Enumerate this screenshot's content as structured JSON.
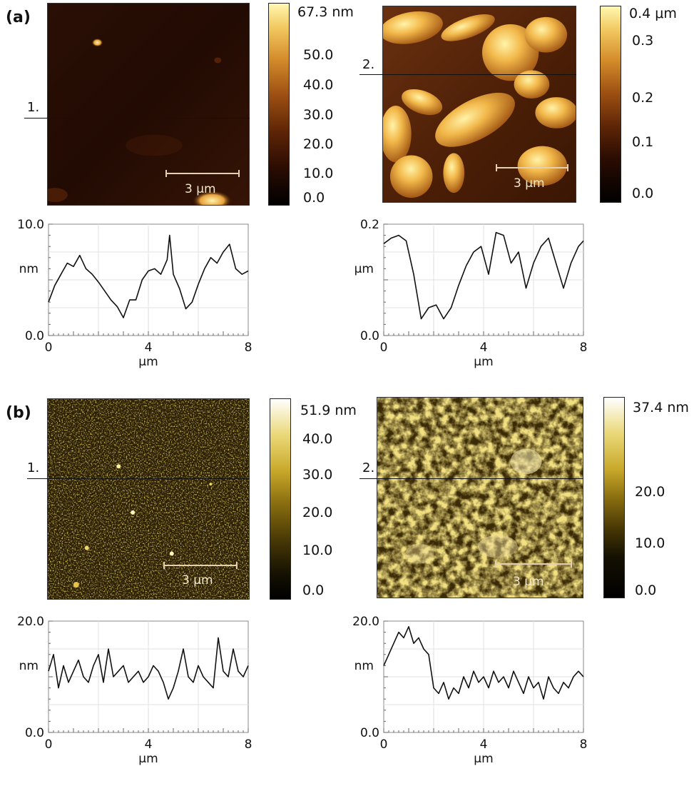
{
  "panels": [
    {
      "label": "(a)",
      "images": [
        {
          "line_label": "1.",
          "scale_label": "3 μm",
          "palette": "copper",
          "colorbar": {
            "max_label": "67.3 nm",
            "ticks": [
              "50.0",
              "40.0",
              "30.0",
              "20.0",
              "10.0",
              "0.0"
            ]
          }
        },
        {
          "line_label": "2.",
          "scale_label": "3 μm",
          "palette": "copper",
          "colorbar": {
            "max_label": "0.4 μm",
            "ticks": [
              "0.3",
              "0.2",
              "0.1",
              "0.0"
            ]
          }
        }
      ]
    },
    {
      "label": "(b)",
      "images": [
        {
          "line_label": "1.",
          "scale_label": "3 μm",
          "palette": "gold",
          "colorbar": {
            "max_label": "51.9 nm",
            "ticks": [
              "40.0",
              "30.0",
              "20.0",
              "10.0",
              "0.0"
            ]
          }
        },
        {
          "line_label": "2.",
          "scale_label": "3 μm",
          "palette": "gold",
          "colorbar": {
            "max_label": "37.4 nm",
            "ticks": [
              "20.0",
              "10.0",
              "0.0"
            ]
          }
        }
      ]
    }
  ],
  "chart_data": [
    {
      "type": "line",
      "panel": "(a)",
      "profile": "1.",
      "xlabel": "μm",
      "ylabel": "nm",
      "xlim": [
        0,
        8
      ],
      "ylim": [
        0,
        10
      ],
      "xticks": [
        "0",
        "4",
        "8"
      ],
      "yticks": [
        "0.0",
        "10.0"
      ],
      "x": [
        0,
        0.25,
        0.5,
        0.75,
        1.0,
        1.25,
        1.5,
        1.75,
        2.0,
        2.25,
        2.5,
        2.75,
        3.0,
        3.25,
        3.5,
        3.75,
        4.0,
        4.25,
        4.5,
        4.75,
        4.85,
        5.0,
        5.25,
        5.5,
        5.75,
        6.0,
        6.25,
        6.5,
        6.75,
        7.0,
        7.25,
        7.5,
        7.75,
        8.0
      ],
      "y": [
        3.0,
        4.5,
        5.5,
        6.5,
        6.2,
        7.2,
        6.0,
        5.5,
        4.8,
        4.0,
        3.2,
        2.6,
        1.6,
        3.2,
        3.2,
        5.0,
        5.8,
        6.0,
        5.5,
        6.8,
        9.0,
        5.5,
        4.2,
        2.4,
        3.0,
        4.6,
        6.0,
        7.0,
        6.5,
        7.5,
        8.2,
        6.0,
        5.5,
        5.8
      ]
    },
    {
      "type": "line",
      "panel": "(a)",
      "profile": "2.",
      "xlabel": "μm",
      "ylabel": "μm",
      "xlim": [
        0,
        8
      ],
      "ylim": [
        0,
        0.2
      ],
      "xticks": [
        "0",
        "4",
        "8"
      ],
      "yticks": [
        "0.0",
        "0.2"
      ],
      "x": [
        0,
        0.3,
        0.6,
        0.9,
        1.2,
        1.5,
        1.8,
        2.1,
        2.4,
        2.7,
        3.0,
        3.3,
        3.6,
        3.9,
        4.2,
        4.5,
        4.8,
        5.1,
        5.4,
        5.7,
        6.0,
        6.3,
        6.6,
        6.9,
        7.2,
        7.5,
        7.8,
        8.0
      ],
      "y": [
        0.165,
        0.175,
        0.18,
        0.17,
        0.11,
        0.03,
        0.05,
        0.055,
        0.03,
        0.05,
        0.09,
        0.125,
        0.15,
        0.16,
        0.11,
        0.185,
        0.18,
        0.13,
        0.15,
        0.085,
        0.13,
        0.16,
        0.175,
        0.13,
        0.085,
        0.13,
        0.16,
        0.17
      ]
    },
    {
      "type": "line",
      "panel": "(b)",
      "profile": "1.",
      "xlabel": "μm",
      "ylabel": "nm",
      "xlim": [
        0,
        8
      ],
      "ylim": [
        0,
        20
      ],
      "xticks": [
        "0",
        "4",
        "8"
      ],
      "yticks": [
        "0.0",
        "20.0"
      ],
      "x": [
        0,
        0.2,
        0.4,
        0.6,
        0.8,
        1.0,
        1.2,
        1.4,
        1.6,
        1.8,
        2.0,
        2.2,
        2.4,
        2.6,
        2.8,
        3.0,
        3.2,
        3.4,
        3.6,
        3.8,
        4.0,
        4.2,
        4.4,
        4.6,
        4.8,
        5.0,
        5.2,
        5.4,
        5.6,
        5.8,
        6.0,
        6.2,
        6.4,
        6.6,
        6.8,
        7.0,
        7.2,
        7.4,
        7.6,
        7.8,
        8.0
      ],
      "y": [
        11,
        14,
        8,
        12,
        9,
        11,
        13,
        10,
        9,
        12,
        14,
        9,
        15,
        10,
        11,
        12,
        9,
        10,
        11,
        9,
        10,
        12,
        11,
        9,
        6,
        8,
        11,
        15,
        10,
        9,
        12,
        10,
        9,
        8,
        17,
        11,
        10,
        15,
        11,
        10,
        12
      ]
    },
    {
      "type": "line",
      "panel": "(b)",
      "profile": "2.",
      "xlabel": "μm",
      "ylabel": "nm",
      "xlim": [
        0,
        8
      ],
      "ylim": [
        0,
        20
      ],
      "xticks": [
        "0",
        "4",
        "8"
      ],
      "yticks": [
        "0.0",
        "20.0"
      ],
      "x": [
        0,
        0.2,
        0.4,
        0.6,
        0.8,
        1.0,
        1.2,
        1.4,
        1.6,
        1.8,
        2.0,
        2.2,
        2.4,
        2.6,
        2.8,
        3.0,
        3.2,
        3.4,
        3.6,
        3.8,
        4.0,
        4.2,
        4.4,
        4.6,
        4.8,
        5.0,
        5.2,
        5.4,
        5.6,
        5.8,
        6.0,
        6.2,
        6.4,
        6.6,
        6.8,
        7.0,
        7.2,
        7.4,
        7.6,
        7.8,
        8.0
      ],
      "y": [
        12,
        14,
        16,
        18,
        17,
        19,
        16,
        17,
        15,
        14,
        8,
        7,
        9,
        6,
        8,
        7,
        10,
        8,
        11,
        9,
        10,
        8,
        11,
        9,
        10,
        8,
        11,
        9,
        7,
        10,
        8,
        9,
        6,
        10,
        8,
        7,
        9,
        8,
        10,
        11,
        10
      ]
    }
  ]
}
